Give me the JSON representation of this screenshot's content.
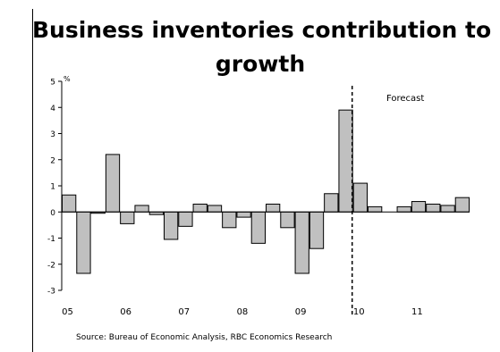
{
  "title_line1": "Business inventories contribution to",
  "title_line2": "growth",
  "source": "Source: Bureau of Economic Analysis, RBC Economics Research",
  "colors": {
    "bar_fill": "#c0c0c0",
    "bar_stroke": "#000000"
  },
  "chart_data": {
    "type": "bar",
    "title": "Business inventories contribution to growth",
    "ylabel": "%",
    "ylim": [
      -3,
      5
    ],
    "yticks": [
      5,
      4,
      3,
      2,
      1,
      0,
      -1,
      -2,
      -3
    ],
    "xtick_labels": [
      "05",
      "06",
      "07",
      "08",
      "09",
      "10",
      "11"
    ],
    "grid": false,
    "forecast_label": "Forecast",
    "series": [
      {
        "values": [
          0.65,
          -2.35,
          -0.05,
          2.2,
          -0.45,
          0.25,
          -0.1,
          -1.05,
          -0.55,
          0.3,
          0.25,
          -0.6,
          -0.2,
          -1.2,
          0.3,
          -0.6,
          -2.35,
          -1.4,
          0.7,
          3.9,
          1.1,
          0.2,
          0.0,
          0.2,
          0.4,
          0.3,
          0.25,
          0.55
        ]
      }
    ]
  }
}
